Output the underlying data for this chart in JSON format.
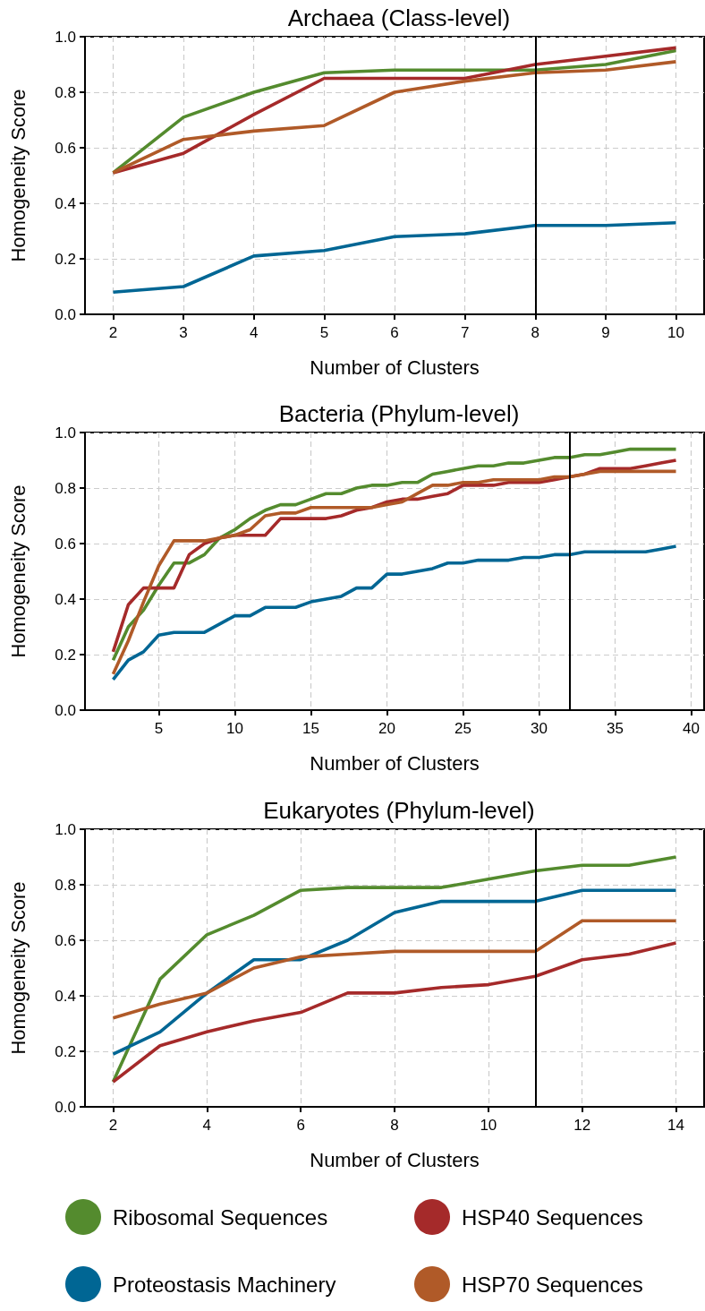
{
  "chart_data": [
    {
      "type": "line",
      "title": "Archaea (Class-level)",
      "xlabel": "Number of Clusters",
      "ylabel": "Homogeneity Score",
      "x": [
        2,
        3,
        4,
        5,
        6,
        7,
        8,
        9,
        10
      ],
      "xlim": [
        1.6,
        10.4
      ],
      "xticks": [
        2,
        3,
        4,
        5,
        6,
        7,
        8,
        9,
        10
      ],
      "ylim": [
        0,
        1
      ],
      "yticks": [
        {
          "value": 0,
          "label": "0.0"
        },
        {
          "value": 0.2,
          "label": "0.2"
        },
        {
          "value": 0.4,
          "label": "0.4"
        },
        {
          "value": 0.6,
          "label": "0.6"
        },
        {
          "value": 0.8,
          "label": "0.8"
        },
        {
          "value": 1,
          "label": "1.0"
        }
      ],
      "grid": true,
      "legend": false,
      "marker": "none",
      "line_style": "solid",
      "ref_lines": [
        {
          "axis": "x",
          "value": 8,
          "color": "#000000"
        }
      ],
      "series": [
        {
          "color": "#548b2e",
          "values": [
            0.51,
            0.71,
            0.8,
            0.87,
            0.88,
            0.88,
            0.88,
            0.9,
            0.95
          ]
        },
        {
          "color": "#006694",
          "values": [
            0.08,
            0.1,
            0.21,
            0.23,
            0.28,
            0.29,
            0.32,
            0.32,
            0.33
          ]
        },
        {
          "color": "#a52a2a",
          "values": [
            0.51,
            0.58,
            0.72,
            0.85,
            0.85,
            0.85,
            0.9,
            0.93,
            0.96
          ]
        },
        {
          "color": "#b05a28",
          "values": [
            0.51,
            0.63,
            0.66,
            0.68,
            0.8,
            0.84,
            0.87,
            0.88,
            0.91
          ]
        }
      ]
    },
    {
      "type": "line",
      "title": "Bacteria (Phylum-level)",
      "xlabel": "Number of Clusters",
      "ylabel": "Homogeneity Score",
      "x": [
        2,
        3,
        4,
        5,
        6,
        7,
        8,
        9,
        10,
        11,
        12,
        13,
        14,
        15,
        16,
        17,
        18,
        19,
        20,
        21,
        22,
        23,
        24,
        25,
        26,
        27,
        28,
        29,
        30,
        31,
        32,
        33,
        34,
        35,
        36,
        37,
        38,
        39
      ],
      "xlim": [
        0.15,
        40.85
      ],
      "xticks": [
        5,
        10,
        15,
        20,
        25,
        30,
        35,
        40
      ],
      "ylim": [
        0,
        1
      ],
      "yticks": [
        {
          "value": 0,
          "label": "0.0"
        },
        {
          "value": 0.2,
          "label": "0.2"
        },
        {
          "value": 0.4,
          "label": "0.4"
        },
        {
          "value": 0.6,
          "label": "0.6"
        },
        {
          "value": 0.8,
          "label": "0.8"
        },
        {
          "value": 1,
          "label": "1.0"
        }
      ],
      "grid": true,
      "legend": false,
      "marker": "none",
      "line_style": "solid",
      "ref_lines": [
        {
          "axis": "x",
          "value": 32,
          "color": "#000000"
        }
      ],
      "series": [
        {
          "color": "#548b2e",
          "values": [
            0.18,
            0.3,
            0.36,
            0.45,
            0.53,
            0.53,
            0.56,
            0.62,
            0.65,
            0.69,
            0.72,
            0.74,
            0.74,
            0.76,
            0.78,
            0.78,
            0.8,
            0.81,
            0.81,
            0.82,
            0.82,
            0.85,
            0.86,
            0.87,
            0.88,
            0.88,
            0.89,
            0.89,
            0.9,
            0.91,
            0.91,
            0.92,
            0.92,
            0.93,
            0.94,
            0.94,
            0.94,
            0.94
          ]
        },
        {
          "color": "#006694",
          "values": [
            0.11,
            0.18,
            0.21,
            0.27,
            0.28,
            0.28,
            0.28,
            0.31,
            0.34,
            0.34,
            0.37,
            0.37,
            0.37,
            0.39,
            0.4,
            0.41,
            0.44,
            0.44,
            0.49,
            0.49,
            0.5,
            0.51,
            0.53,
            0.53,
            0.54,
            0.54,
            0.54,
            0.55,
            0.55,
            0.56,
            0.56,
            0.57,
            0.57,
            0.57,
            0.57,
            0.57,
            0.58,
            0.59
          ]
        },
        {
          "color": "#a52a2a",
          "values": [
            0.21,
            0.38,
            0.44,
            0.44,
            0.44,
            0.56,
            0.6,
            0.62,
            0.63,
            0.63,
            0.63,
            0.69,
            0.69,
            0.69,
            0.69,
            0.7,
            0.72,
            0.73,
            0.75,
            0.76,
            0.76,
            0.77,
            0.78,
            0.81,
            0.81,
            0.81,
            0.82,
            0.82,
            0.82,
            0.83,
            0.84,
            0.85,
            0.87,
            0.87,
            0.87,
            0.88,
            0.89,
            0.9
          ]
        },
        {
          "color": "#b05a28",
          "values": [
            0.13,
            0.25,
            0.39,
            0.52,
            0.61,
            0.61,
            0.61,
            0.62,
            0.63,
            0.65,
            0.7,
            0.71,
            0.71,
            0.73,
            0.73,
            0.73,
            0.73,
            0.73,
            0.74,
            0.75,
            0.78,
            0.81,
            0.81,
            0.82,
            0.82,
            0.83,
            0.83,
            0.83,
            0.83,
            0.84,
            0.84,
            0.85,
            0.86,
            0.86,
            0.86,
            0.86,
            0.86,
            0.86
          ]
        }
      ]
    },
    {
      "type": "line",
      "title": "Eukaryotes (Phylum-level)",
      "xlabel": "Number of Clusters",
      "ylabel": "Homogeneity Score",
      "x": [
        2,
        3,
        4,
        5,
        6,
        7,
        8,
        9,
        10,
        11,
        12,
        13,
        14
      ],
      "xlim": [
        1.4,
        14.6
      ],
      "xticks": [
        2,
        4,
        6,
        8,
        10,
        12,
        14
      ],
      "ylim": [
        0,
        1
      ],
      "yticks": [
        {
          "value": 0,
          "label": "0.0"
        },
        {
          "value": 0.2,
          "label": "0.2"
        },
        {
          "value": 0.4,
          "label": "0.4"
        },
        {
          "value": 0.6,
          "label": "0.6"
        },
        {
          "value": 0.8,
          "label": "0.8"
        },
        {
          "value": 1,
          "label": "1.0"
        }
      ],
      "grid": true,
      "legend": "bottom",
      "marker": "none",
      "line_style": "solid",
      "ref_lines": [
        {
          "axis": "x",
          "value": 11,
          "color": "#000000"
        }
      ],
      "series": [
        {
          "name": "Ribosomal Sequences",
          "color": "#548b2e",
          "values": [
            0.09,
            0.46,
            0.62,
            0.69,
            0.78,
            0.79,
            0.79,
            0.79,
            0.82,
            0.85,
            0.87,
            0.87,
            0.9
          ]
        },
        {
          "name": "Proteostasis Machinery",
          "color": "#006694",
          "values": [
            0.19,
            0.27,
            0.41,
            0.53,
            0.53,
            0.6,
            0.7,
            0.74,
            0.74,
            0.74,
            0.78,
            0.78,
            0.78
          ]
        },
        {
          "name": "HSP40 Sequences",
          "color": "#a52a2a",
          "values": [
            0.09,
            0.22,
            0.27,
            0.31,
            0.34,
            0.41,
            0.41,
            0.43,
            0.44,
            0.47,
            0.53,
            0.55,
            0.59
          ]
        },
        {
          "name": "HSP70 Sequences",
          "color": "#b05a28",
          "values": [
            0.32,
            0.37,
            0.41,
            0.5,
            0.54,
            0.55,
            0.56,
            0.56,
            0.56,
            0.56,
            0.67,
            0.67,
            0.67
          ]
        }
      ]
    }
  ]
}
